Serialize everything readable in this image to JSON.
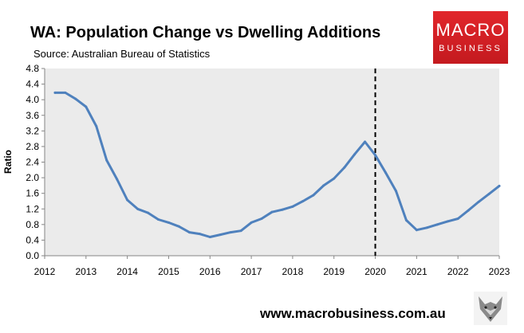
{
  "header": {
    "title": "WA: Population Change vs Dwelling Additions",
    "source": "Source: Australian Bureau of Statistics"
  },
  "logo": {
    "line1": "MACRO",
    "line2": "BUSINESS"
  },
  "footer": {
    "url": "www.macrobusiness.com.au"
  },
  "colors": {
    "series": "#4f81bd",
    "plot_background": "#ebebeb",
    "logo_red": "#d42026",
    "marker_line": "#000000"
  },
  "chart_data": {
    "type": "line",
    "title": "WA: Population Change vs Dwelling Additions",
    "xlabel": "",
    "ylabel": "Ratio",
    "xlim": [
      2012,
      2023
    ],
    "ylim": [
      0,
      4.8
    ],
    "x_ticks": [
      2012,
      2013,
      2014,
      2015,
      2016,
      2017,
      2018,
      2019,
      2020,
      2021,
      2022,
      2023
    ],
    "y_ticks": [
      "0.0",
      "0.4",
      "0.8",
      "1.2",
      "1.6",
      "2.0",
      "2.4",
      "2.8",
      "3.2",
      "3.6",
      "4.0",
      "4.4",
      "4.8"
    ],
    "grid": false,
    "vertical_marker": {
      "x": 2020,
      "style": "dashed"
    },
    "series": [
      {
        "name": "Ratio",
        "x": [
          2012.25,
          2012.5,
          2012.75,
          2013.0,
          2013.25,
          2013.5,
          2013.75,
          2014.0,
          2014.25,
          2014.5,
          2014.75,
          2015.0,
          2015.25,
          2015.5,
          2015.75,
          2016.0,
          2016.25,
          2016.5,
          2016.75,
          2017.0,
          2017.25,
          2017.5,
          2017.75,
          2018.0,
          2018.25,
          2018.5,
          2018.75,
          2019.0,
          2019.25,
          2019.5,
          2019.75,
          2020.0,
          2020.25,
          2020.5,
          2020.75,
          2021.0,
          2021.25,
          2021.5,
          2021.75,
          2022.0,
          2022.25,
          2022.5,
          2022.75,
          2023.0
        ],
        "values": [
          4.18,
          4.18,
          4.02,
          3.82,
          3.32,
          2.45,
          1.96,
          1.43,
          1.2,
          1.1,
          0.93,
          0.85,
          0.75,
          0.6,
          0.56,
          0.48,
          0.54,
          0.6,
          0.64,
          0.85,
          0.95,
          1.12,
          1.18,
          1.26,
          1.4,
          1.55,
          1.8,
          1.98,
          2.26,
          2.6,
          2.92,
          2.58,
          2.13,
          1.66,
          0.91,
          0.66,
          0.72,
          0.8,
          0.88,
          0.95,
          1.16,
          1.38,
          1.58,
          1.79
        ]
      }
    ]
  }
}
